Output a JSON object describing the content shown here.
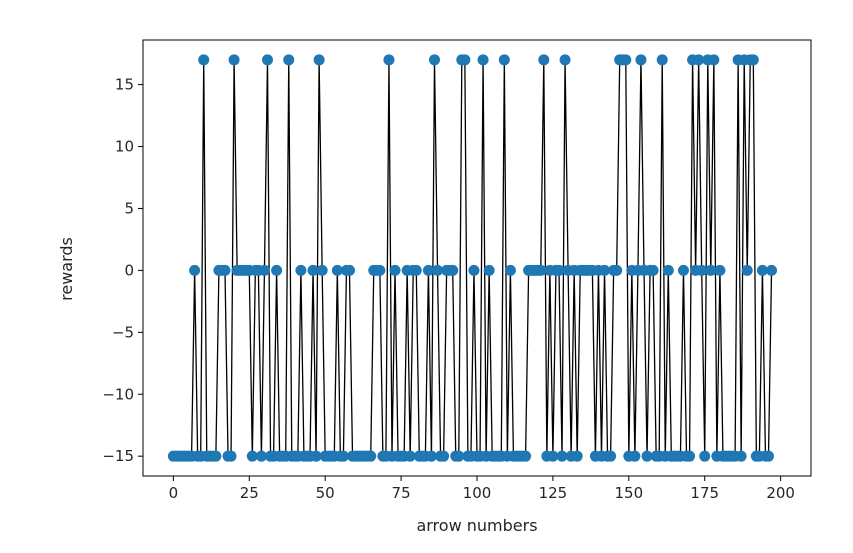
{
  "chart_data": {
    "type": "line",
    "title": "",
    "xlabel": "arrow numbers",
    "ylabel": "rewards",
    "xlim": [
      -10,
      210
    ],
    "ylim": [
      -16.6,
      18.6
    ],
    "xticks": [
      0,
      25,
      50,
      75,
      100,
      125,
      150,
      175,
      200
    ],
    "yticks": [
      -15,
      -10,
      -5,
      0,
      5,
      10,
      15
    ],
    "xtick_labels": [
      "0",
      "25",
      "50",
      "75",
      "100",
      "125",
      "150",
      "175",
      "200"
    ],
    "ytick_labels": [
      "−15",
      "−10",
      "−5",
      "0",
      "5",
      "10",
      "15"
    ],
    "grid": false,
    "legend": "none",
    "colors": {
      "line": "#000000",
      "marker": "#1f77b4"
    },
    "x_start": 0,
    "x_step": 1,
    "values": [
      -15,
      -15,
      -15,
      -15,
      -15,
      -15,
      -15,
      0,
      -15,
      -15,
      17,
      -15,
      -15,
      -15,
      -15,
      0,
      0,
      0,
      -15,
      -15,
      17,
      0,
      0,
      0,
      0,
      0,
      -15,
      0,
      0,
      -15,
      0,
      17,
      -15,
      -15,
      0,
      -15,
      -15,
      -15,
      17,
      -15,
      -15,
      -15,
      0,
      -15,
      -15,
      -15,
      0,
      -15,
      17,
      0,
      -15,
      -15,
      -15,
      -15,
      0,
      -15,
      -15,
      0,
      0,
      -15,
      -15,
      -15,
      -15,
      -15,
      -15,
      -15,
      0,
      0,
      0,
      -15,
      -15,
      17,
      -15,
      0,
      -15,
      -15,
      -15,
      0,
      -15,
      0,
      0,
      -15,
      -15,
      -15,
      0,
      -15,
      17,
      0,
      -15,
      -15,
      0,
      0,
      0,
      -15,
      -15,
      17,
      17,
      -15,
      -15,
      0,
      -15,
      -15,
      17,
      -15,
      0,
      -15,
      -15,
      -15,
      -15,
      17,
      -15,
      0,
      -15,
      -15,
      -15,
      -15,
      -15,
      0,
      0,
      0,
      0,
      0,
      17,
      -15,
      0,
      -15,
      0,
      0,
      -15,
      17,
      0,
      -15,
      0,
      -15,
      0,
      0,
      0,
      0,
      0,
      -15,
      0,
      -15,
      0,
      -15,
      -15,
      0,
      0,
      17,
      17,
      17,
      -15,
      0,
      -15,
      0,
      17,
      0,
      -15,
      0,
      0,
      -15,
      -15,
      17,
      -15,
      0,
      -15,
      -15,
      -15,
      -15,
      0,
      -15,
      -15,
      17,
      0,
      17,
      0,
      -15,
      17,
      0,
      17,
      -15,
      0,
      -15,
      -15,
      -15,
      -15,
      -15,
      17,
      -15,
      17,
      0,
      17,
      17,
      -15,
      -15,
      0,
      -15,
      -15,
      0
    ]
  }
}
